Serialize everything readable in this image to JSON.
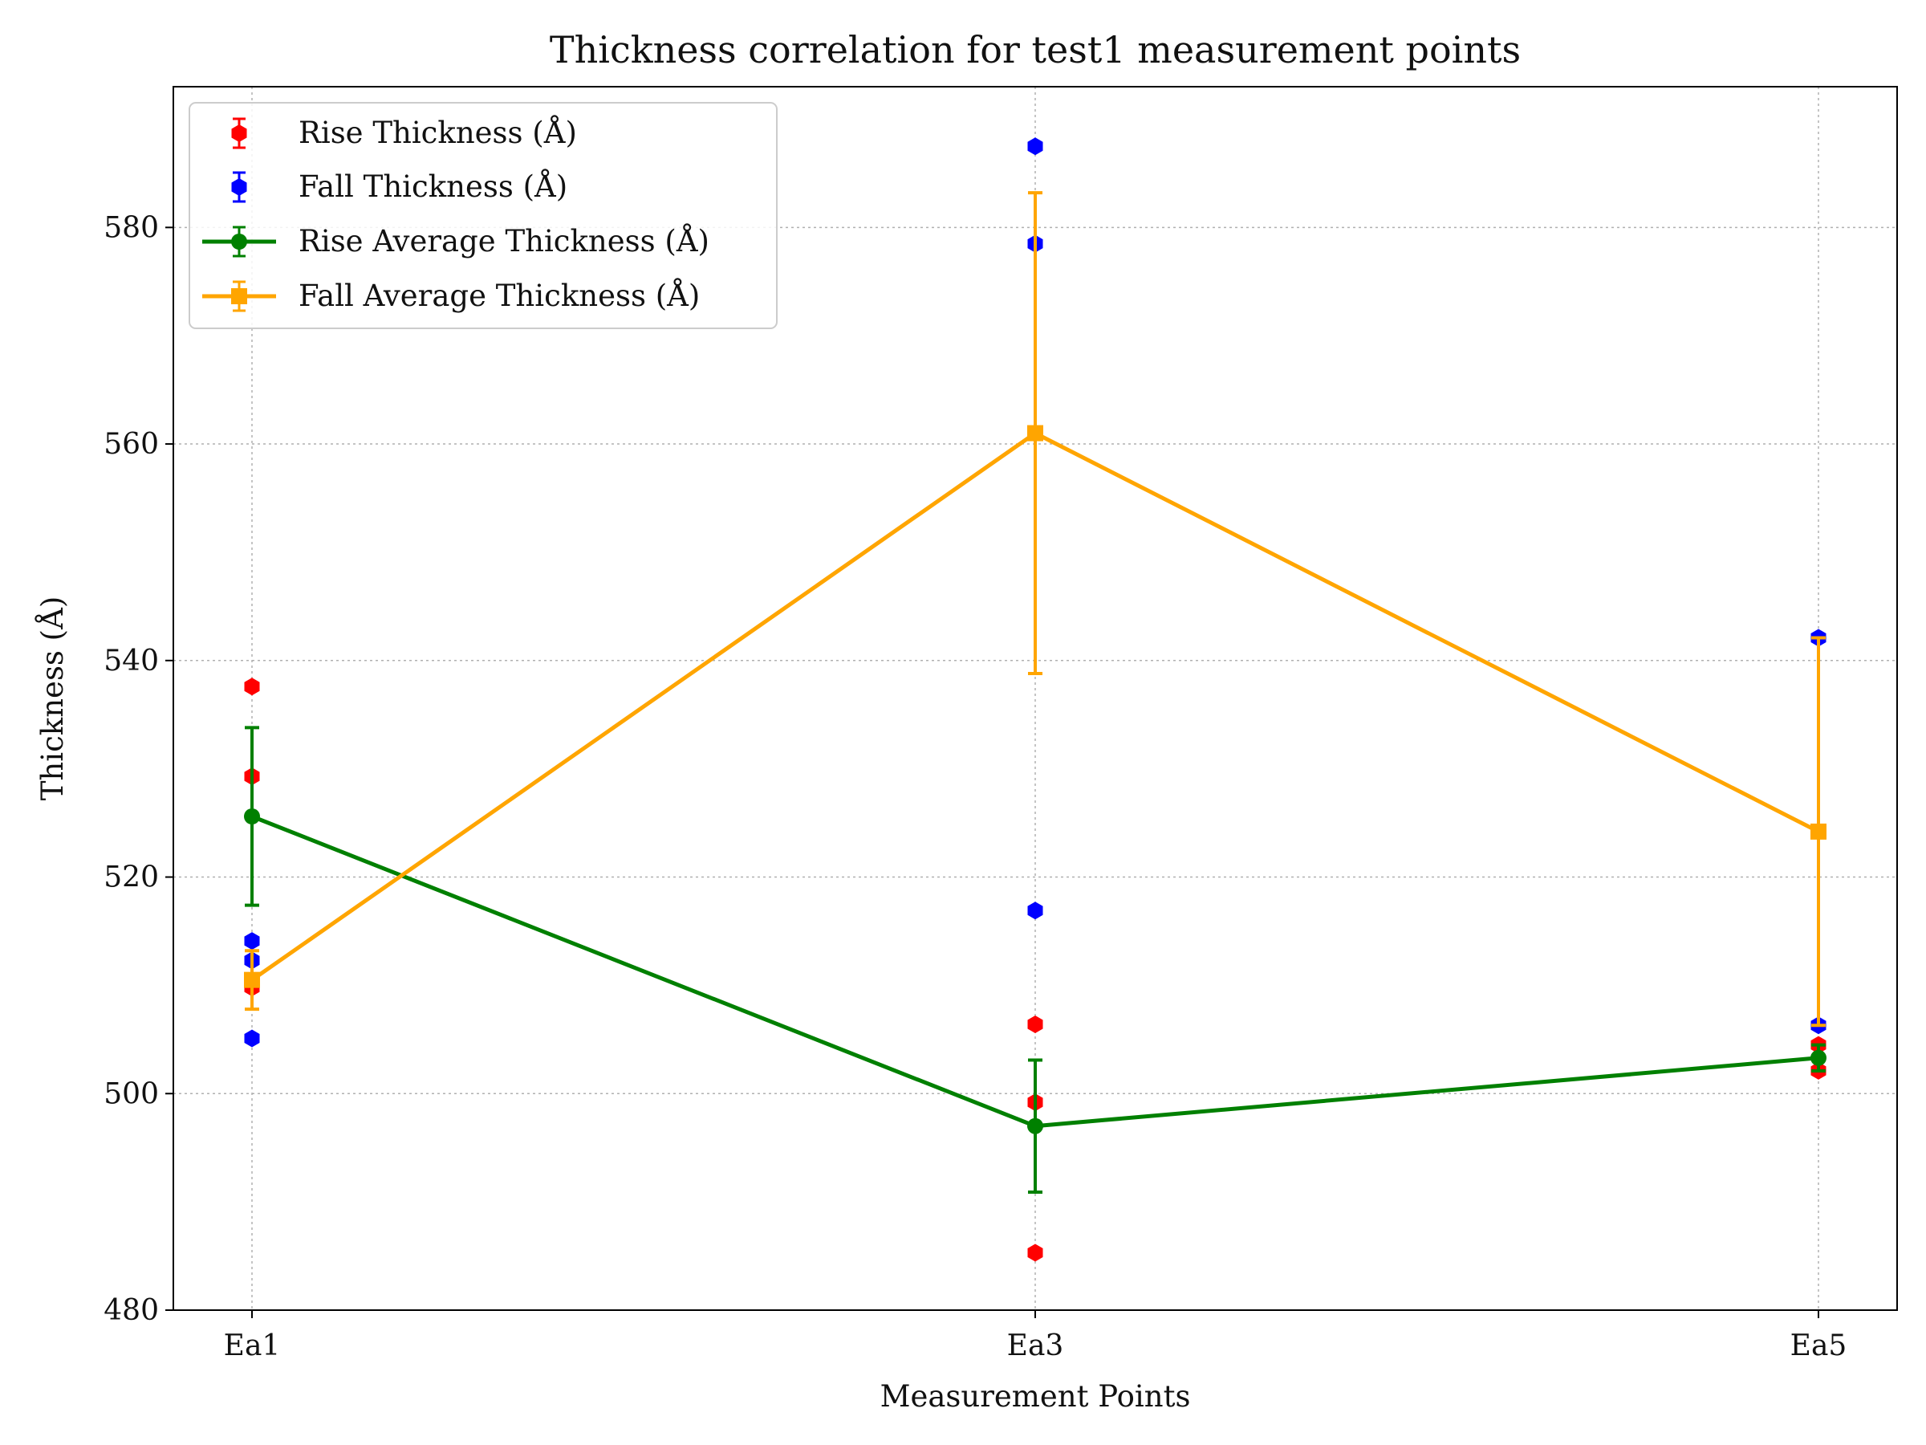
{
  "chart_data": {
    "type": "scatter",
    "title": "Thickness correlation for test1 measurement points",
    "xlabel": "Measurement Points",
    "ylabel": "Thickness (Å)",
    "categories": [
      "Ea1",
      "Ea3",
      "Ea5"
    ],
    "ylim": [
      480,
      593
    ],
    "yticks": [
      480,
      500,
      520,
      540,
      560,
      580
    ],
    "grid": true,
    "legend_position": "top-left",
    "series": [
      {
        "name": "Rise Thickness (Å)",
        "kind": "points",
        "color": "#ff0000",
        "marker": "hexagon",
        "points": [
          {
            "x": "Ea1",
            "y": 537.6
          },
          {
            "x": "Ea1",
            "y": 529.3
          },
          {
            "x": "Ea1",
            "y": 509.8
          },
          {
            "x": "Ea3",
            "y": 506.4
          },
          {
            "x": "Ea3",
            "y": 499.2
          },
          {
            "x": "Ea3",
            "y": 485.3
          },
          {
            "x": "Ea5",
            "y": 504.5
          },
          {
            "x": "Ea5",
            "y": 502.1
          }
        ]
      },
      {
        "name": "Fall Thickness (Å)",
        "kind": "points",
        "color": "#0000ff",
        "marker": "hexagon",
        "points": [
          {
            "x": "Ea1",
            "y": 514.1
          },
          {
            "x": "Ea1",
            "y": 512.3
          },
          {
            "x": "Ea1",
            "y": 505.1
          },
          {
            "x": "Ea3",
            "y": 587.5
          },
          {
            "x": "Ea3",
            "y": 578.5
          },
          {
            "x": "Ea3",
            "y": 516.9
          },
          {
            "x": "Ea5",
            "y": 542.1
          },
          {
            "x": "Ea5",
            "y": 506.3
          }
        ]
      },
      {
        "name": "Rise Average Thickness (Å)",
        "kind": "line",
        "color": "#008000",
        "marker": "circle",
        "values": [
          525.6,
          497.0,
          503.3
        ],
        "errors": [
          8.2,
          6.1,
          1.2
        ]
      },
      {
        "name": "Fall Average Thickness (Å)",
        "kind": "line",
        "color": "#ffa500",
        "marker": "square",
        "values": [
          510.5,
          561.0,
          524.2
        ],
        "errors": [
          2.7,
          22.2,
          17.9
        ]
      }
    ]
  }
}
